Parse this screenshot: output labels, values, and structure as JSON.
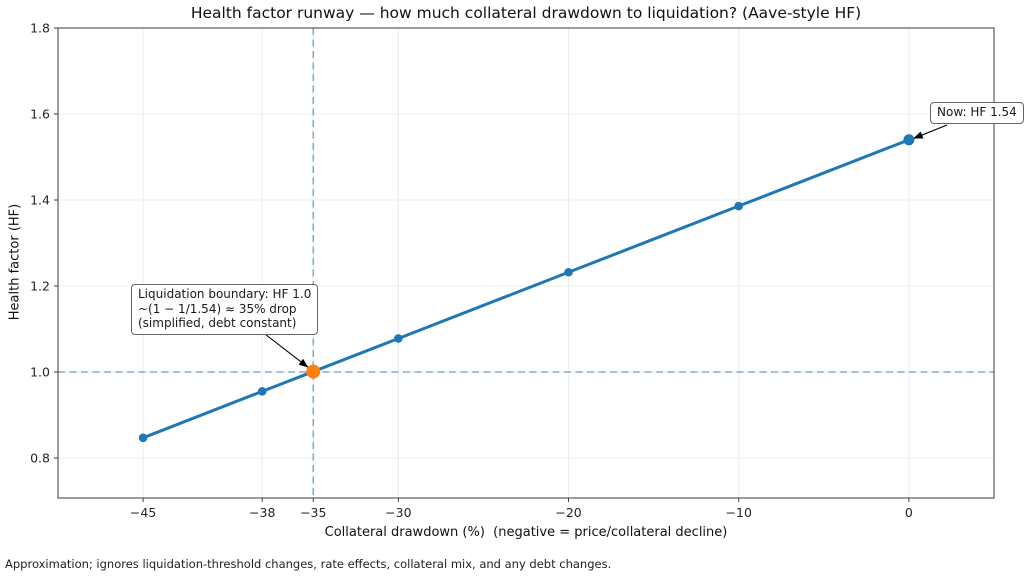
{
  "figure": {
    "footnote": "Approximation; ignores liquidation-threshold changes, rate effects, collateral mix, and any debt changes."
  },
  "chart_data": {
    "type": "line",
    "title": "Health factor runway — how much collateral drawdown to liquidation? (Aave-style HF)",
    "xlabel": "Collateral drawdown (%)  (negative = price/collateral decline)",
    "ylabel": "Health factor (HF)",
    "series": [
      {
        "name": "Health factor",
        "x": [
          -45,
          -38,
          -35,
          -30,
          -20,
          -10,
          0
        ],
        "y": [
          0.847,
          0.955,
          1.001,
          1.078,
          1.232,
          1.386,
          1.54
        ],
        "color": "#1f77b4"
      }
    ],
    "xticks": [
      -45,
      -38,
      -35,
      -30,
      -20,
      -10,
      0
    ],
    "yticks": [
      0.8,
      1.0,
      1.2,
      1.4,
      1.6,
      1.8
    ],
    "xlim": [
      -50,
      5
    ],
    "ylim": [
      0.707,
      1.8
    ],
    "grid": true,
    "legend": "none",
    "highlight_point": {
      "x": -35,
      "y": 1.001,
      "color": "#ff7f0e"
    },
    "now_point": {
      "x": 0,
      "y": 1.54,
      "color": "#1f77b4"
    },
    "hline": {
      "y": 1.0,
      "style": "dashed",
      "color": "rgba(31,119,180,0.55)"
    },
    "vline": {
      "x": -35,
      "style": "dashed",
      "color": "rgba(31,119,180,0.55)"
    },
    "annotations": [
      {
        "text": "Liquidation boundary: HF 1.0\n~(1 − 1/1.54) ≈ 35% drop\n(simplified, debt constant)",
        "target_x": -35,
        "target_y": 1.001
      },
      {
        "text": "Now: HF 1.54",
        "target_x": 0,
        "target_y": 1.54
      }
    ]
  }
}
